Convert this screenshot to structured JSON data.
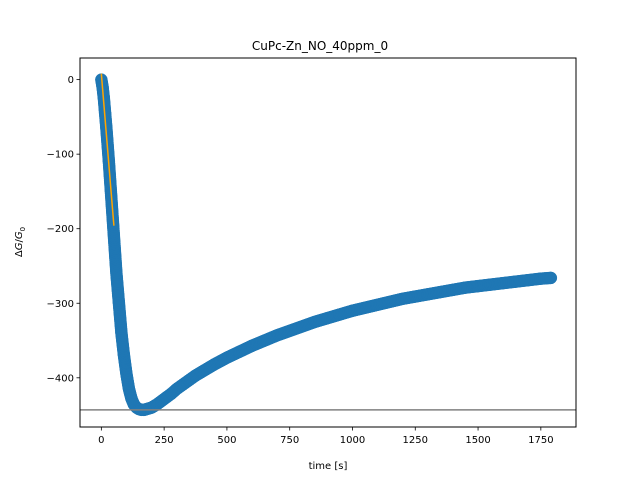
{
  "chart_data": {
    "type": "scatter",
    "title": "CuPc-Zn_NO_40ppm_0",
    "xlabel": "time [s]",
    "ylabel_parts": {
      "delta": "Δ",
      "G": "G",
      "slash": "/",
      "G0": "G",
      "sub": "0"
    },
    "xlim": [
      -85,
      1890
    ],
    "ylim": [
      -466,
      29
    ],
    "xticks": [
      0,
      250,
      500,
      750,
      1000,
      1250,
      1500,
      1750
    ],
    "yticks": [
      0,
      -100,
      -200,
      -300,
      -400
    ],
    "grid": false,
    "series": [
      {
        "kind": "scatter",
        "color": "#1f77b4",
        "x": [
          0,
          5,
          10,
          15,
          20,
          30,
          40,
          50,
          60,
          70,
          80,
          90,
          100,
          110,
          120,
          130,
          140,
          150,
          160,
          170,
          180,
          190,
          200,
          210,
          220,
          240,
          260,
          280,
          300,
          325,
          350,
          375,
          400,
          450,
          500,
          550,
          600,
          650,
          700,
          750,
          800,
          850,
          900,
          950,
          1000,
          1050,
          1100,
          1150,
          1200,
          1250,
          1300,
          1350,
          1400,
          1450,
          1500,
          1550,
          1600,
          1650,
          1700,
          1750,
          1790
        ],
        "y": [
          0,
          -10,
          -25,
          -45,
          -65,
          -110,
          -160,
          -210,
          -260,
          -300,
          -340,
          -370,
          -395,
          -415,
          -428,
          -436,
          -440,
          -442,
          -443,
          -443,
          -442,
          -441,
          -440,
          -438,
          -436,
          -431,
          -426,
          -421,
          -415,
          -409,
          -403,
          -397,
          -392,
          -382,
          -373,
          -365,
          -357,
          -350,
          -343,
          -337,
          -331,
          -325,
          -320,
          -315,
          -310,
          -306,
          -302,
          -298,
          -294,
          -291,
          -288,
          -285,
          -282,
          -279,
          -277,
          -275,
          -273,
          -271,
          -269,
          -267,
          -266
        ]
      },
      {
        "kind": "line",
        "color": "#ffa500",
        "x": [
          0,
          50
        ],
        "y": [
          8,
          -196
        ]
      }
    ],
    "hline": {
      "y": -443,
      "color": "#808080"
    }
  }
}
